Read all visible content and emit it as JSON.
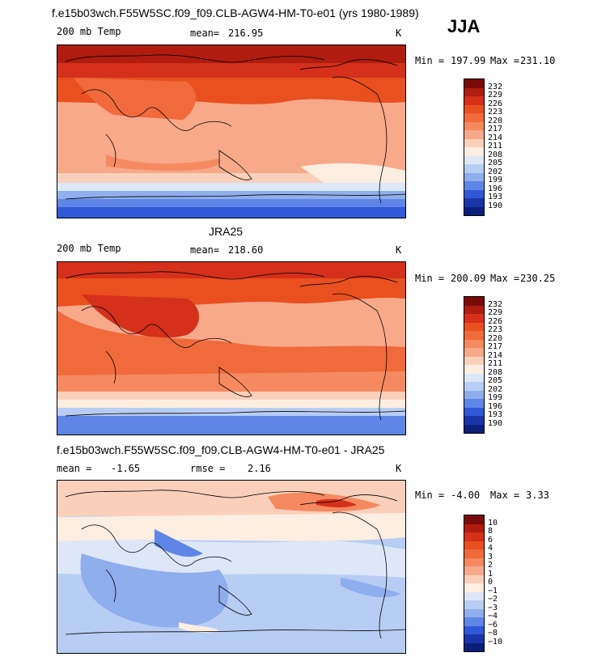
{
  "season": "JJA",
  "panels": [
    {
      "id": "model",
      "title": "f.e15b03wch.F55W5SC.f09_f09.CLB-AGW4-HM-T0-e01 (yrs 1980-1989)",
      "variable": "200 mb Temp",
      "mean_label": "mean=",
      "mean": "216.95",
      "units": "K",
      "min_label": "Min =",
      "min": "197.99",
      "max_label": "Max =",
      "max": "231.10"
    },
    {
      "id": "obs",
      "title": "JRA25",
      "variable": "200 mb Temp",
      "mean_label": "mean=",
      "mean": "218.60",
      "units": "K",
      "min_label": "Min =",
      "min": "200.09",
      "max_label": "Max =",
      "max": "230.25"
    },
    {
      "id": "diff",
      "title": "f.e15b03wch.F55W5SC.f09_f09.CLB-AGW4-HM-T0-e01 - JRA25",
      "mean_label": "mean =",
      "mean": "-1.65",
      "rmse_label": "rmse =",
      "rmse": "2.16",
      "units": "K",
      "min_label": "Min =",
      "min": "-4.00",
      "max_label": "Max =",
      "max": "3.33"
    }
  ],
  "chart_data": [
    {
      "type": "heatmap",
      "title": "200 mb Temp",
      "colorbar_ticks": [
        "232",
        "229",
        "226",
        "223",
        "220",
        "217",
        "214",
        "211",
        "208",
        "205",
        "202",
        "199",
        "196",
        "193",
        "190"
      ],
      "colorbar_colors": [
        "#7a0a0a",
        "#b01c10",
        "#d4301a",
        "#e8501f",
        "#f06a3c",
        "#f58a60",
        "#f7a98a",
        "#fbd0bb",
        "#fdeee2",
        "#dde7f8",
        "#b8cdf3",
        "#8faeed",
        "#5f86e6",
        "#3158d6",
        "#1a35a8",
        "#0a1f7a"
      ],
      "min": 197.99,
      "max": 231.1,
      "mean": 216.95
    },
    {
      "type": "heatmap",
      "title": "JRA25",
      "colorbar_ticks": [
        "232",
        "229",
        "226",
        "223",
        "220",
        "217",
        "214",
        "211",
        "208",
        "205",
        "202",
        "199",
        "196",
        "193",
        "190"
      ],
      "colorbar_colors": [
        "#7a0a0a",
        "#b01c10",
        "#d4301a",
        "#e8501f",
        "#f06a3c",
        "#f58a60",
        "#f7a98a",
        "#fbd0bb",
        "#fdeee2",
        "#dde7f8",
        "#b8cdf3",
        "#8faeed",
        "#5f86e6",
        "#3158d6",
        "#1a35a8",
        "#0a1f7a"
      ],
      "min": 200.09,
      "max": 230.25,
      "mean": 218.6
    },
    {
      "type": "heatmap",
      "title": "f.e15b03wch.F55W5SC.f09_f09.CLB-AGW4-HM-T0-e01 - JRA25",
      "colorbar_ticks": [
        "10",
        "8",
        "6",
        "4",
        "3",
        "2",
        "1",
        "0",
        "−1",
        "−2",
        "−3",
        "−4",
        "−6",
        "−8",
        "−10"
      ],
      "colorbar_colors": [
        "#7a0a0a",
        "#b01c10",
        "#d4301a",
        "#e8501f",
        "#f06a3c",
        "#f58a60",
        "#f7a98a",
        "#fbd0bb",
        "#fdeee2",
        "#dde7f8",
        "#b8cdf3",
        "#8faeed",
        "#5f86e6",
        "#3158d6",
        "#1a35a8",
        "#0a1f7a"
      ],
      "min": -4.0,
      "max": 3.33,
      "mean": -1.65,
      "rmse": 2.16
    }
  ]
}
